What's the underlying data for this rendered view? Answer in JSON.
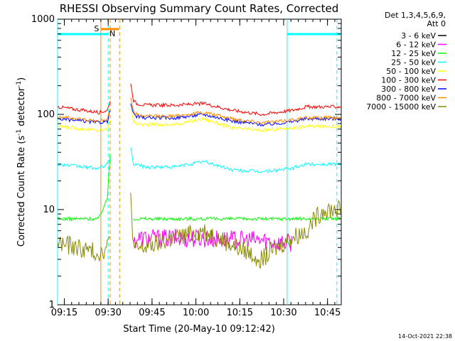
{
  "chart_data": {
    "type": "line",
    "title": "RHESSI Observing Summary Count Rates, Corrected",
    "xlabel": "Start Time (20-May-10 09:12:42)",
    "ylabel": "Corrected Count Rate (s",
    "ylabel_sup1": "-1",
    "ylabel_mid": " detector",
    "ylabel_sup2": "-1",
    "ylabel_end": ")",
    "x_range_min": [
      0,
      97
    ],
    "x_ticks": [
      {
        "min": 2.3,
        "label": "09:15"
      },
      {
        "min": 17.3,
        "label": "09:30"
      },
      {
        "min": 32.3,
        "label": "09:45"
      },
      {
        "min": 47.3,
        "label": "10:00"
      },
      {
        "min": 62.3,
        "label": "10:15"
      },
      {
        "min": 77.3,
        "label": "10:30"
      },
      {
        "min": 92.3,
        "label": "10:45"
      }
    ],
    "y_scale": "log",
    "ylim": [
      1,
      1000
    ],
    "y_ticks": [
      {
        "value": 1,
        "label": "1"
      },
      {
        "value": 10,
        "label": "10"
      },
      {
        "value": 100,
        "label": "100"
      },
      {
        "value": 1000,
        "label": "1000"
      }
    ],
    "legend_header": [
      "Det 1,3,4,5,6,9,",
      "Att 0"
    ],
    "legend_placement": "right",
    "series": [
      {
        "name": "3 - 6 keV",
        "color": "#000000",
        "points": [
          [
            0,
            null
          ],
          [
            14,
            null
          ],
          [
            17,
            null
          ],
          [
            18,
            null
          ],
          [
            18.5,
            null
          ],
          [
            19,
            null
          ],
          [
            20,
            null
          ],
          [
            22,
            null
          ],
          [
            22.8,
            null
          ],
          [
            23,
            null
          ],
          [
            24,
            null
          ],
          [
            24.5,
            null
          ],
          [
            24.8,
            null
          ],
          [
            25,
            null
          ],
          [
            26,
            null
          ],
          [
            27,
            null
          ],
          [
            30,
            null
          ],
          [
            40,
            null
          ],
          [
            50,
            null
          ],
          [
            60,
            null
          ],
          [
            70,
            null
          ],
          [
            75,
            null
          ],
          [
            80,
            null
          ],
          [
            85,
            null
          ],
          [
            88,
            null
          ],
          [
            91,
            null
          ],
          [
            95,
            null
          ],
          [
            97,
            null
          ]
        ]
      },
      {
        "name": "6 - 12 keV",
        "color": "#ff00ff",
        "points": [
          [
            0,
            null
          ],
          [
            14,
            null
          ],
          [
            17,
            null
          ],
          [
            18,
            null
          ],
          [
            18.5,
            null
          ],
          [
            19,
            null
          ],
          [
            20,
            null
          ],
          [
            22,
            null
          ],
          [
            22.8,
            null
          ],
          [
            23,
            null
          ],
          [
            24,
            null
          ],
          [
            24.5,
            null
          ],
          [
            24.8,
            null
          ],
          [
            25,
            null
          ],
          [
            26,
            4.5
          ],
          [
            27,
            5
          ],
          [
            30,
            5
          ],
          [
            40,
            5
          ],
          [
            50,
            5
          ],
          [
            60,
            4.8
          ],
          [
            70,
            4.8
          ],
          [
            75,
            4.5
          ],
          [
            80,
            4.5
          ],
          [
            85,
            null
          ],
          [
            88,
            null
          ],
          [
            91,
            null
          ],
          [
            95,
            null
          ],
          [
            97,
            null
          ]
        ]
      },
      {
        "name": "12 - 25 keV",
        "color": "#00ff00",
        "points": [
          [
            0,
            8
          ],
          [
            14,
            8
          ],
          [
            17,
            13
          ],
          [
            18,
            40
          ],
          [
            18.5,
            null
          ],
          [
            19,
            null
          ],
          [
            20,
            null
          ],
          [
            22,
            null
          ],
          [
            22.8,
            null
          ],
          [
            23,
            null
          ],
          [
            24,
            null
          ],
          [
            24.5,
            null
          ],
          [
            24.8,
            null
          ],
          [
            25,
            null
          ],
          [
            26,
            8
          ],
          [
            27,
            8
          ],
          [
            30,
            8
          ],
          [
            40,
            8
          ],
          [
            50,
            8
          ],
          [
            60,
            8
          ],
          [
            70,
            8
          ],
          [
            75,
            8
          ],
          [
            80,
            8
          ],
          [
            85,
            8
          ],
          [
            88,
            8
          ],
          [
            91,
            8
          ],
          [
            95,
            8
          ],
          [
            97,
            8
          ]
        ]
      },
      {
        "name": "25 - 50 keV",
        "color": "#00ffff",
        "points": [
          [
            0,
            30
          ],
          [
            14,
            27
          ],
          [
            17,
            30
          ],
          [
            18,
            35
          ],
          [
            18.5,
            null
          ],
          [
            19,
            null
          ],
          [
            20,
            null
          ],
          [
            22,
            null
          ],
          [
            22.8,
            null
          ],
          [
            23,
            null
          ],
          [
            24,
            null
          ],
          [
            24.5,
            null
          ],
          [
            24.8,
            null
          ],
          [
            25,
            45
          ],
          [
            26,
            30
          ],
          [
            27,
            30
          ],
          [
            30,
            28
          ],
          [
            40,
            28
          ],
          [
            50,
            32
          ],
          [
            60,
            26
          ],
          [
            70,
            25
          ],
          [
            75,
            26
          ],
          [
            80,
            27
          ],
          [
            85,
            30
          ],
          [
            88,
            30
          ],
          [
            91,
            30
          ],
          [
            95,
            30
          ],
          [
            97,
            30
          ]
        ]
      },
      {
        "name": "50 - 100 keV",
        "color": "#ffff00",
        "points": [
          [
            0,
            75
          ],
          [
            14,
            68
          ],
          [
            17,
            70
          ],
          [
            18,
            90
          ],
          [
            18.5,
            null
          ],
          [
            19,
            null
          ],
          [
            20,
            null
          ],
          [
            22,
            null
          ],
          [
            22.8,
            null
          ],
          [
            23,
            null
          ],
          [
            24,
            null
          ],
          [
            24.5,
            null
          ],
          [
            24.8,
            null
          ],
          [
            25,
            110
          ],
          [
            26,
            85
          ],
          [
            27,
            80
          ],
          [
            30,
            78
          ],
          [
            40,
            78
          ],
          [
            50,
            90
          ],
          [
            60,
            72
          ],
          [
            70,
            68
          ],
          [
            75,
            70
          ],
          [
            80,
            72
          ],
          [
            85,
            75
          ],
          [
            88,
            75
          ],
          [
            91,
            75
          ],
          [
            95,
            75
          ],
          [
            97,
            75
          ]
        ]
      },
      {
        "name": "100 - 300 keV",
        "color": "#ff0000",
        "points": [
          [
            0,
            120
          ],
          [
            14,
            105
          ],
          [
            17,
            110
          ],
          [
            18,
            140
          ],
          [
            18.5,
            null
          ],
          [
            19,
            null
          ],
          [
            20,
            null
          ],
          [
            22,
            null
          ],
          [
            22.8,
            null
          ],
          [
            23,
            null
          ],
          [
            24,
            null
          ],
          [
            24.5,
            null
          ],
          [
            24.8,
            null
          ],
          [
            25,
            210
          ],
          [
            26,
            140
          ],
          [
            27,
            130
          ],
          [
            30,
            125
          ],
          [
            40,
            125
          ],
          [
            50,
            130
          ],
          [
            60,
            110
          ],
          [
            70,
            100
          ],
          [
            75,
            105
          ],
          [
            80,
            110
          ],
          [
            85,
            120
          ],
          [
            88,
            120
          ],
          [
            91,
            120
          ],
          [
            95,
            120
          ],
          [
            97,
            120
          ]
        ]
      },
      {
        "name": "300 - 800 keV",
        "color": "#0000ff",
        "points": [
          [
            0,
            90
          ],
          [
            14,
            82
          ],
          [
            17,
            85
          ],
          [
            18,
            110
          ],
          [
            18.5,
            null
          ],
          [
            19,
            null
          ],
          [
            20,
            null
          ],
          [
            22,
            null
          ],
          [
            22.8,
            null
          ],
          [
            23,
            null
          ],
          [
            24,
            null
          ],
          [
            24.5,
            null
          ],
          [
            24.8,
            null
          ],
          [
            25,
            130
          ],
          [
            26,
            100
          ],
          [
            27,
            95
          ],
          [
            30,
            92
          ],
          [
            40,
            92
          ],
          [
            50,
            100
          ],
          [
            60,
            85
          ],
          [
            70,
            78
          ],
          [
            75,
            80
          ],
          [
            80,
            84
          ],
          [
            85,
            90
          ],
          [
            88,
            90
          ],
          [
            91,
            90
          ],
          [
            95,
            90
          ],
          [
            97,
            90
          ]
        ]
      },
      {
        "name": "800 - 7000 keV",
        "color": "#ff8c00",
        "points": [
          [
            0,
            95
          ],
          [
            14,
            85
          ],
          [
            17,
            90
          ],
          [
            18,
            115
          ],
          [
            18.5,
            null
          ],
          [
            19,
            null
          ],
          [
            20,
            null
          ],
          [
            22,
            null
          ],
          [
            22.8,
            null
          ],
          [
            23,
            null
          ],
          [
            24,
            null
          ],
          [
            24.5,
            null
          ],
          [
            24.8,
            null
          ],
          [
            25,
            150
          ],
          [
            26,
            105
          ],
          [
            27,
            100
          ],
          [
            30,
            96
          ],
          [
            40,
            96
          ],
          [
            50,
            105
          ],
          [
            60,
            90
          ],
          [
            70,
            82
          ],
          [
            75,
            84
          ],
          [
            80,
            88
          ],
          [
            85,
            92
          ],
          [
            88,
            92
          ],
          [
            91,
            92
          ],
          [
            95,
            92
          ],
          [
            97,
            92
          ]
        ]
      },
      {
        "name": "7000 - 15000 keV",
        "color": "#8b8b00",
        "points": [
          [
            0,
            4.5
          ],
          [
            14,
            3.5
          ],
          [
            17,
            4
          ],
          [
            18,
            5
          ],
          [
            18.5,
            null
          ],
          [
            19,
            null
          ],
          [
            20,
            null
          ],
          [
            22,
            null
          ],
          [
            22.8,
            null
          ],
          [
            23,
            null
          ],
          [
            24,
            null
          ],
          [
            24.5,
            null
          ],
          [
            24.8,
            null
          ],
          [
            25,
            15
          ],
          [
            26,
            4
          ],
          [
            27,
            3.8
          ],
          [
            30,
            4
          ],
          [
            40,
            5
          ],
          [
            50,
            6
          ],
          [
            60,
            4.2
          ],
          [
            70,
            3
          ],
          [
            75,
            4
          ],
          [
            80,
            5
          ],
          [
            85,
            6
          ],
          [
            88,
            8
          ],
          [
            91,
            10
          ],
          [
            95,
            10
          ],
          [
            97,
            10
          ]
        ]
      }
    ],
    "annotations": {
      "saa": {
        "label": "S",
        "start_min": 14.8,
        "end_min": 21.0,
        "color": "#ff8c00"
      },
      "night": [
        {
          "label": "N",
          "start_min": 17.3,
          "end_min": 19.0,
          "color": "#00ffff"
        }
      ],
      "cyan_bars": [
        {
          "start_min": 0,
          "end_min": 17.3
        },
        {
          "start_min": 78.5,
          "end_min": 97
        }
      ],
      "cyan_dashed": [
        17.3,
        95.5
      ],
      "cyan_solid": [
        0,
        78.5
      ],
      "orange_dashed": [
        18.0,
        21.2
      ],
      "orange_solid": [
        14.8
      ]
    },
    "grid": false
  },
  "timestamp": "14-Oct-2021 22:38"
}
